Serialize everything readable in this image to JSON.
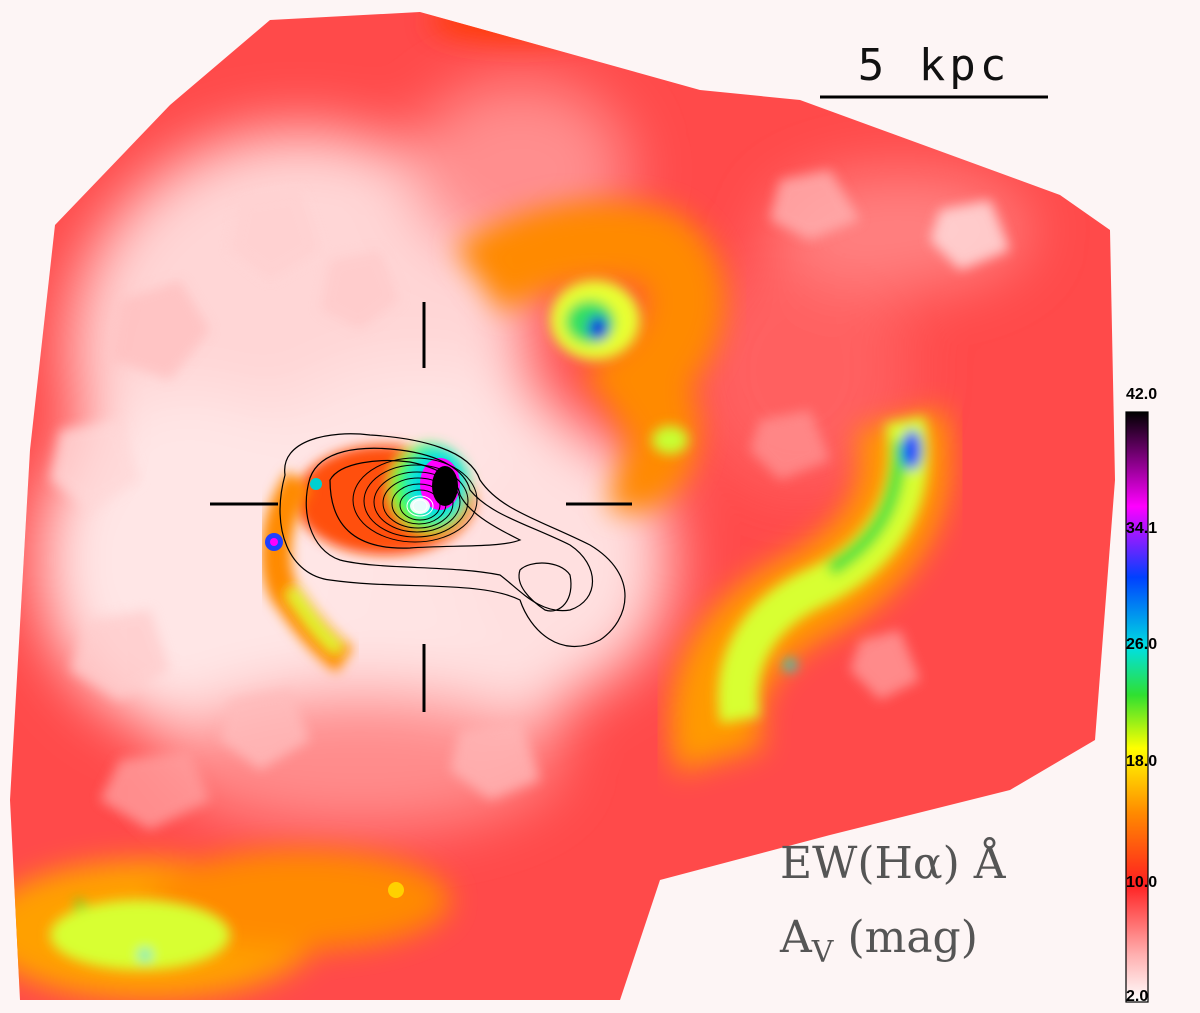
{
  "scale_bar": {
    "label": "5 kpc"
  },
  "legend": {
    "line1": "EW(Hα) Å",
    "line2_main": "A",
    "line2_sub": "V",
    "line2_rest": " (mag)"
  },
  "colorbar": {
    "ticks": [
      "42.0",
      "34.1",
      "26.0",
      "18.0",
      "10.0",
      "2.0"
    ],
    "min": 2.0,
    "max": 42.0,
    "colors": [
      "#ffffff",
      "#ff9a9a",
      "#ff2020",
      "#ff8a00",
      "#ffff00",
      "#30e030",
      "#00e0e0",
      "#0040ff",
      "#ff00ff",
      "#000000"
    ]
  }
}
